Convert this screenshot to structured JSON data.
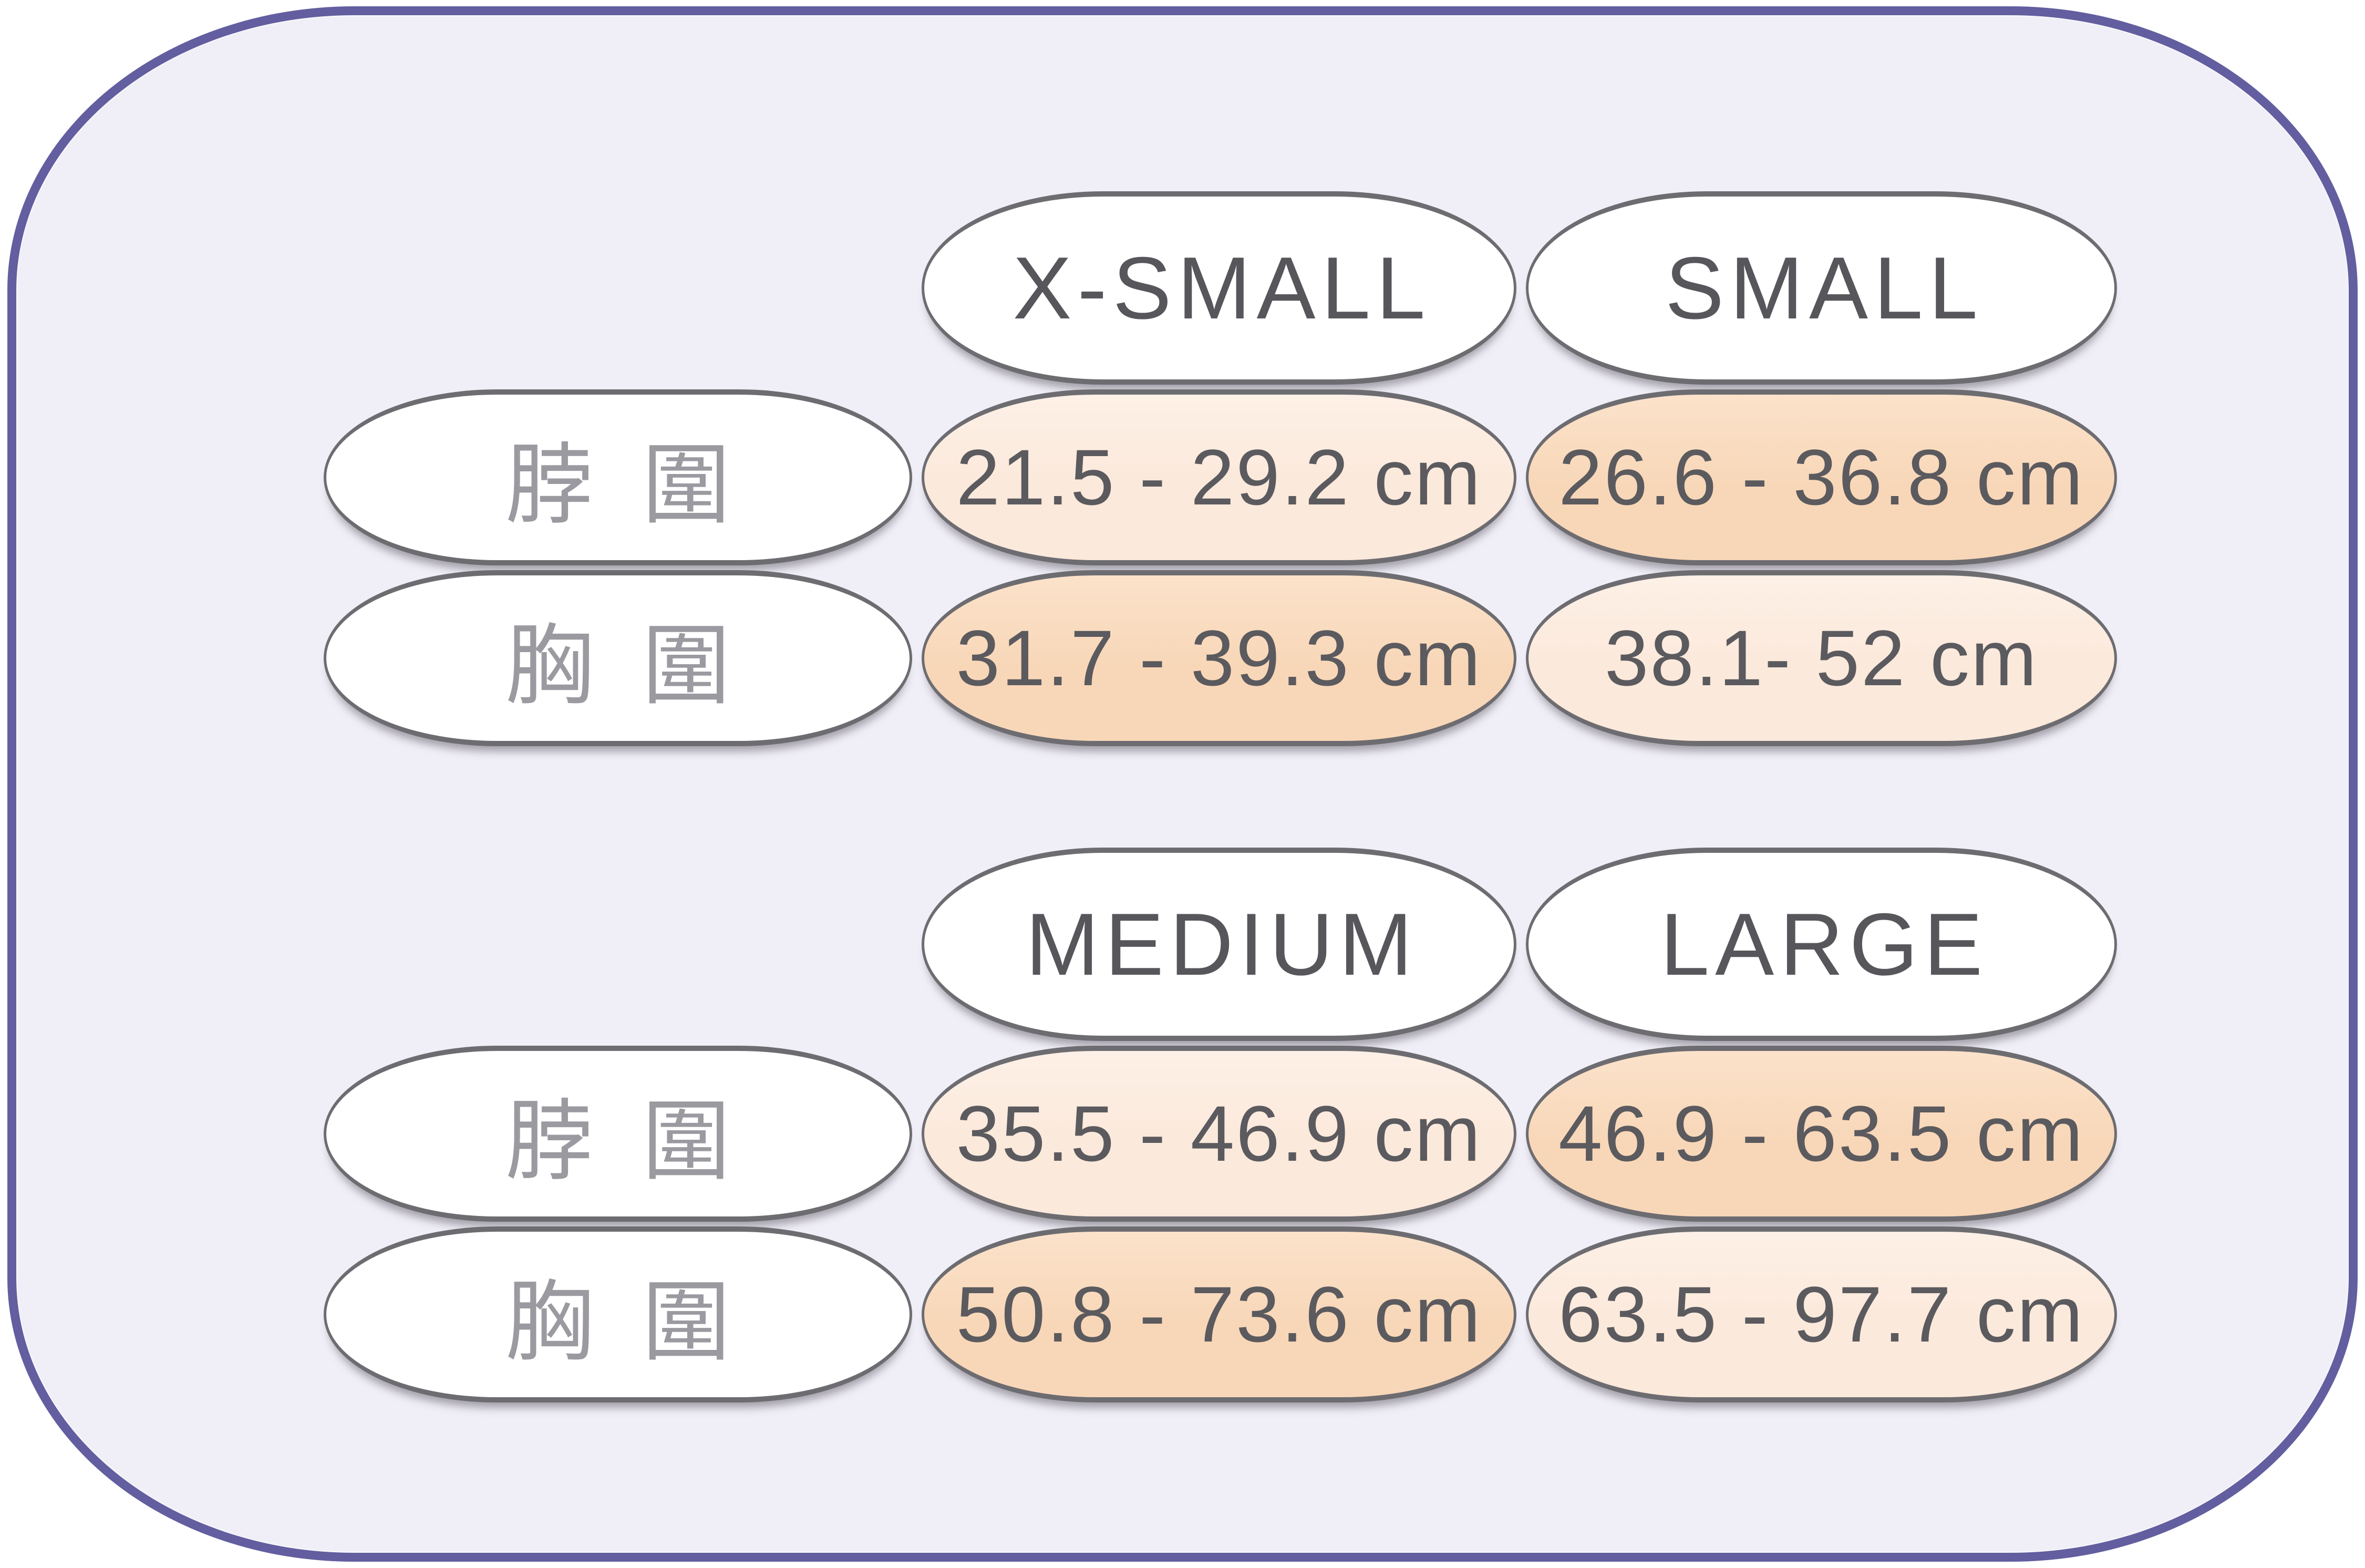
{
  "size_chart": {
    "sections": [
      {
        "size_headers": [
          "X-SMALL",
          "SMALL"
        ],
        "rows": [
          {
            "label": "脖圍",
            "values": [
              {
                "text": "21.5 - 29.2 cm",
                "tone": "light"
              },
              {
                "text": "26.6 - 36.8 cm",
                "tone": "dark"
              }
            ]
          },
          {
            "label": "胸圍",
            "values": [
              {
                "text": "31.7 - 39.3 cm",
                "tone": "dark"
              },
              {
                "text": "38.1- 52 cm",
                "tone": "light"
              }
            ]
          }
        ]
      },
      {
        "size_headers": [
          "MEDIUM",
          "LARGE"
        ],
        "rows": [
          {
            "label": "脖圍",
            "values": [
              {
                "text": "35.5 - 46.9 cm",
                "tone": "light"
              },
              {
                "text": "46.9 - 63.5 cm",
                "tone": "dark"
              }
            ]
          },
          {
            "label": "胸圍",
            "values": [
              {
                "text": "50.8 - 73.6 cm",
                "tone": "dark"
              },
              {
                "text": "63.5 - 97.7 cm",
                "tone": "light"
              }
            ]
          }
        ]
      }
    ]
  },
  "chart_data": {
    "type": "table",
    "columns": [
      "",
      "X-SMALL",
      "SMALL",
      "MEDIUM",
      "LARGE"
    ],
    "rows": [
      {
        "label": "脖圍",
        "values": [
          "21.5 - 29.2 cm",
          "26.6 - 36.8 cm",
          "35.5 - 46.9 cm",
          "46.9 - 63.5 cm"
        ]
      },
      {
        "label": "胸圍",
        "values": [
          "31.7 - 39.3 cm",
          "38.1- 52 cm",
          "50.8 - 73.6 cm",
          "63.5 - 97.7 cm"
        ]
      }
    ],
    "unit": "cm",
    "notes": "Checkerboard shading: light/dark peach alternating per cell"
  },
  "colors": {
    "panel_background": "#F0EEF6",
    "panel_border": "#625E9F",
    "pill_border": "#6D6C71",
    "header_pill_background": "#FFFFFF",
    "label_pill_background": "#FFFFFF",
    "value_pill_light": "#FBE9DB",
    "value_pill_dark": "#F8D7B8",
    "header_text": "#57565B",
    "value_text": "#5B5A5E",
    "label_text": "#9B9AA0"
  }
}
